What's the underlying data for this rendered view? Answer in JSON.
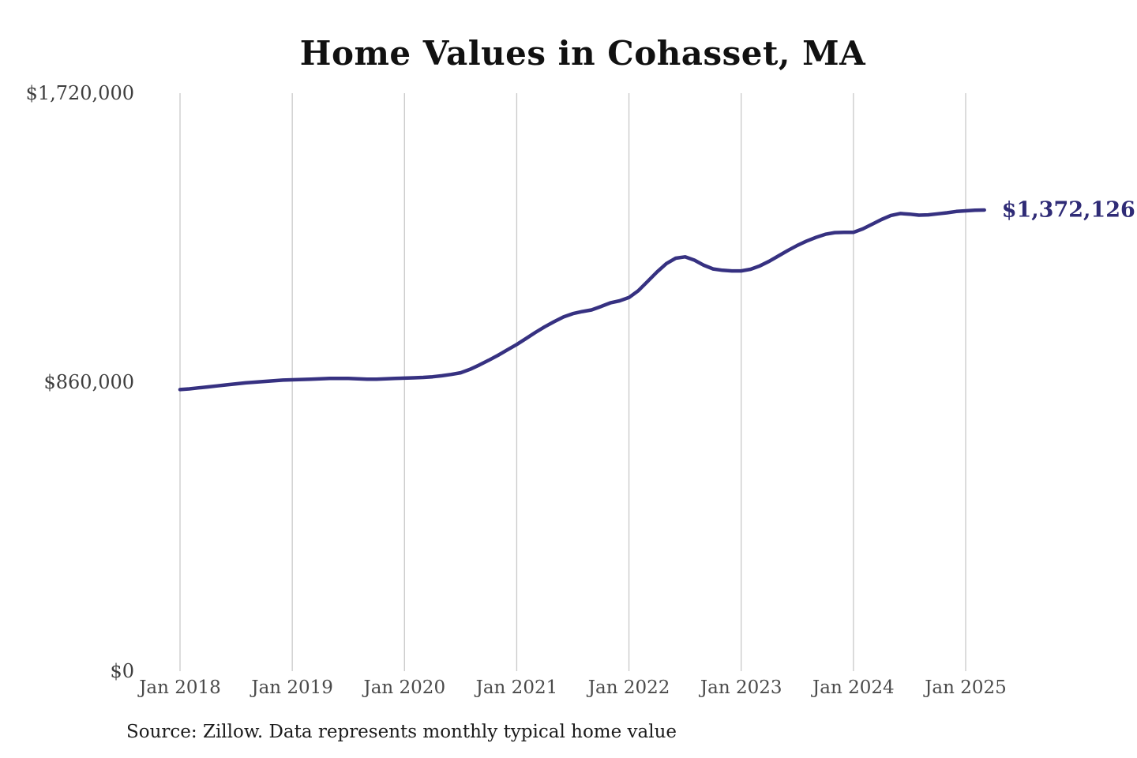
{
  "page": {
    "source_note": "Source: Zillow. Data represents monthly typical home value"
  },
  "chart_data": {
    "type": "line",
    "title": "Home Values in Cohasset, MA",
    "series_name": "Typical home value (monthly)",
    "x_start": "2018-01",
    "x_end": "2025-03",
    "frequency": "monthly",
    "x_tick_labels": [
      "Jan 2018",
      "Jan 2019",
      "Jan 2020",
      "Jan 2021",
      "Jan 2022",
      "Jan 2023",
      "Jan 2024",
      "Jan 2025"
    ],
    "y_ticks": [
      1720000,
      860000,
      0
    ],
    "y_tick_labels": [
      "$1,720,000",
      "$860,000",
      "$0"
    ],
    "ylim": [
      0,
      1720000
    ],
    "grid": "vertical-only",
    "legend": "none",
    "values": [
      838000,
      840000,
      843000,
      846000,
      849000,
      852000,
      855000,
      858000,
      860000,
      862000,
      864000,
      866000,
      867000,
      868000,
      869000,
      870000,
      871000,
      871000,
      871000,
      870000,
      869000,
      869000,
      870000,
      871000,
      872000,
      873000,
      874000,
      876000,
      879000,
      883000,
      888000,
      898000,
      911000,
      925000,
      940000,
      956000,
      972000,
      990000,
      1008000,
      1025000,
      1040000,
      1054000,
      1064000,
      1070000,
      1075000,
      1085000,
      1096000,
      1102000,
      1112000,
      1132000,
      1160000,
      1188000,
      1213000,
      1229000,
      1233000,
      1223000,
      1208000,
      1197000,
      1193000,
      1191000,
      1191000,
      1196000,
      1206000,
      1220000,
      1236000,
      1252000,
      1267000,
      1280000,
      1291000,
      1300000,
      1305000,
      1306000,
      1306000,
      1316000,
      1330000,
      1344000,
      1356000,
      1362000,
      1360000,
      1357000,
      1358000,
      1361000,
      1364000,
      1368000,
      1370000,
      1371500,
      1372126
    ],
    "latest_value": 1372126,
    "end_label": "$1,372,126",
    "line_color": "#363181",
    "end_label_color": "#2f2b76",
    "gridline_color": "#c9c9c9"
  }
}
